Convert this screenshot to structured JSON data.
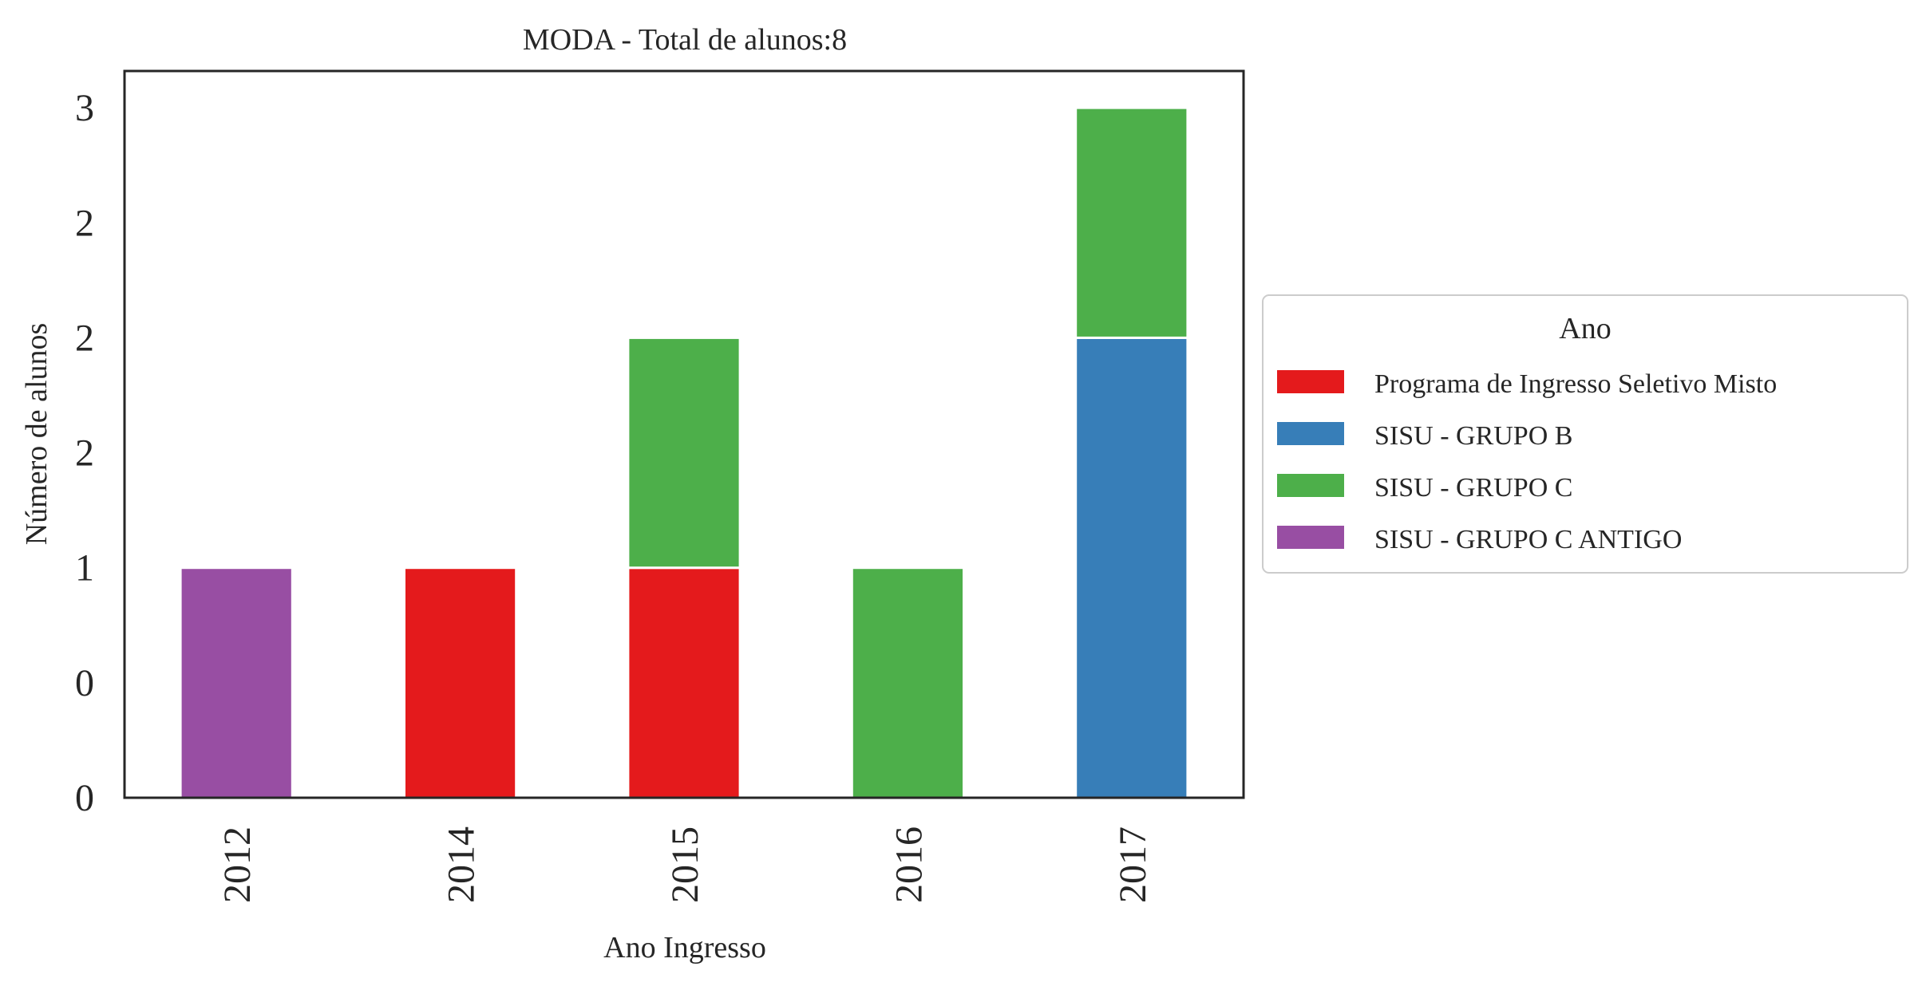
{
  "chart_data": {
    "type": "bar",
    "stacked": true,
    "title": "MODA - Total de alunos:8",
    "xlabel": "Ano Ingresso",
    "ylabel": "Número de alunos",
    "categories": [
      "2012",
      "2014",
      "2015",
      "2016",
      "2017"
    ],
    "ylim": [
      0,
      3.16
    ],
    "yticks": [
      0,
      0.5,
      1.0,
      1.5,
      2.0,
      2.5,
      3.0
    ],
    "ytick_labels": [
      "0",
      "0",
      "1",
      "2",
      "2",
      "2",
      "3"
    ],
    "series": [
      {
        "name": "Programa de Ingresso Seletivo Misto",
        "color": "#e41a1c",
        "values": [
          0,
          1,
          1,
          0,
          0
        ]
      },
      {
        "name": "SISU - GRUPO B",
        "color": "#377eb8",
        "values": [
          0,
          0,
          0,
          0,
          2
        ]
      },
      {
        "name": "SISU - GRUPO C",
        "color": "#4daf4a",
        "values": [
          0,
          0,
          1,
          1,
          1
        ]
      },
      {
        "name": "SISU - GRUPO C ANTIGO",
        "color": "#984ea3",
        "values": [
          1,
          0,
          0,
          0,
          0
        ]
      }
    ],
    "legend": {
      "title": "Ano",
      "position": "center-right-outside"
    },
    "grid": false
  }
}
